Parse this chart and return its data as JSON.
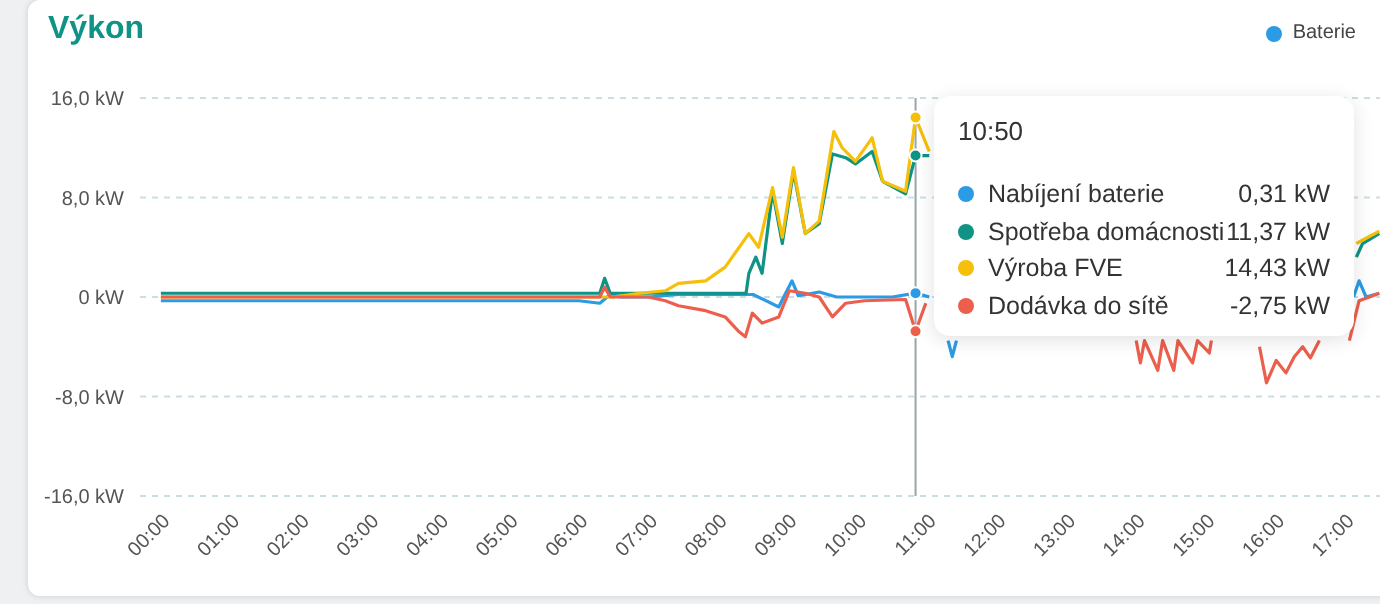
{
  "chart_data": {
    "type": "line",
    "title": "Výkon",
    "xlim": [
      -0.3,
      17.5
    ],
    "xticks": [
      {
        "value": 0,
        "label": "00:00"
      },
      {
        "value": 1,
        "label": "01:00"
      },
      {
        "value": 2,
        "label": "02:00"
      },
      {
        "value": 3,
        "label": "03:00"
      },
      {
        "value": 4,
        "label": "04:00"
      },
      {
        "value": 5,
        "label": "05:00"
      },
      {
        "value": 6,
        "label": "06:00"
      },
      {
        "value": 7,
        "label": "07:00"
      },
      {
        "value": 8,
        "label": "08:00"
      },
      {
        "value": 9,
        "label": "09:00"
      },
      {
        "value": 10,
        "label": "10:00"
      },
      {
        "value": 11,
        "label": "11:00"
      },
      {
        "value": 12,
        "label": "12:00"
      },
      {
        "value": 13,
        "label": "13:00"
      },
      {
        "value": 14,
        "label": "14:00"
      },
      {
        "value": 15,
        "label": "15:00"
      },
      {
        "value": 16,
        "label": "16:00"
      },
      {
        "value": 17,
        "label": "17:00"
      }
    ],
    "ylim": [
      -16,
      16
    ],
    "yticks": [
      {
        "value": -16,
        "label": "-16,0 kW"
      },
      {
        "value": -8,
        "label": "-8,0 kW"
      },
      {
        "value": 0,
        "label": "0 kW"
      },
      {
        "value": 8,
        "label": "8,0 kW"
      },
      {
        "value": 16,
        "label": "16,0 kW"
      }
    ],
    "grid": "y",
    "legend": "top right",
    "marker": "none",
    "line_style": "solid",
    "series": [
      {
        "name": "Nabíjení baterie",
        "color": "#2b9be6",
        "x": [
          0,
          3,
          6,
          6.3,
          6.45,
          6.6,
          7,
          7.43,
          8.0,
          8.5,
          8.87,
          8.95,
          9.06,
          9.15,
          9.45,
          9.7,
          10,
          10.5,
          10.833,
          11.03,
          11.15,
          11.3,
          11.36,
          11.42,
          12,
          17.12,
          17.2,
          17.3,
          17.49
        ],
        "values": [
          -0.3,
          -0.3,
          -0.3,
          -0.5,
          0.2,
          0,
          0,
          0.2,
          0.2,
          0.2,
          -0.8,
          0.1,
          1.3,
          0.1,
          0.4,
          0,
          0,
          0,
          0.31,
          0,
          null,
          -3.5,
          -4.8,
          -3.5,
          null,
          0,
          1.3,
          0,
          0.3
        ]
      },
      {
        "name": "Spotřeba domácnosti",
        "color": "#0e9384",
        "x": [
          0,
          3,
          6,
          6.3,
          6.37,
          6.45,
          7,
          7.5,
          8.0,
          8.4,
          8.44,
          8.54,
          8.63,
          8.78,
          8.92,
          9.08,
          9.25,
          9.45,
          9.64,
          9.83,
          9.97,
          10.21,
          10.36,
          10.69,
          10.833,
          11.03,
          11.2,
          17.16,
          17.25,
          17.49
        ],
        "values": [
          0.3,
          0.3,
          0.3,
          0.3,
          1.5,
          0.3,
          0.3,
          0.3,
          0.3,
          0.3,
          1.9,
          3.2,
          1.9,
          8.5,
          4.3,
          10.1,
          5.1,
          5.9,
          11.5,
          11.2,
          10.7,
          11.7,
          9.3,
          8.3,
          11.37,
          11.37,
          null,
          3.2,
          4.3,
          5.1
        ]
      },
      {
        "name": "Výroba FVE",
        "color": "#f5bf0a",
        "x": [
          0,
          6.5,
          6.87,
          7.24,
          7.43,
          7.82,
          8.1,
          8.44,
          8.58,
          8.78,
          8.92,
          9.08,
          9.25,
          9.45,
          9.66,
          9.78,
          9.97,
          10.21,
          10.36,
          10.69,
          10.833,
          11.03,
          11.2,
          17.16,
          17.49
        ],
        "values": [
          0,
          0,
          0.3,
          0.5,
          1.1,
          1.3,
          2.4,
          5.1,
          4.0,
          8.8,
          4.8,
          10.4,
          5.1,
          6.1,
          13.3,
          12.0,
          10.9,
          12.8,
          9.3,
          8.5,
          14.43,
          11.7,
          null,
          4.3,
          5.3
        ]
      },
      {
        "name": "Dodávka do sítě",
        "color": "#ec5f4c",
        "x": [
          0,
          3,
          6,
          6.3,
          6.37,
          6.45,
          7,
          7.24,
          7.43,
          7.82,
          8.1,
          8.3,
          8.39,
          8.49,
          8.63,
          8.87,
          9.02,
          9.25,
          9.45,
          9.64,
          9.83,
          10.1,
          10.69,
          10.833,
          10.98,
          11.1,
          14.0,
          14.06,
          14.12,
          14.31,
          14.38,
          14.54,
          14.6,
          14.81,
          14.88,
          15.05,
          15.08,
          15.2,
          15.77,
          15.87,
          16.01,
          16.15,
          16.27,
          16.39,
          16.5,
          16.63,
          17.0,
          17.06,
          17.2,
          17.35,
          17.49
        ],
        "values": [
          0,
          0,
          0,
          0,
          0.8,
          0,
          0,
          -0.3,
          -0.7,
          -1.1,
          -1.6,
          -2.8,
          -3.2,
          -1.3,
          -2.1,
          -1.6,
          0.5,
          0.3,
          0,
          -1.6,
          -0.5,
          -0.3,
          -0.2,
          -2.75,
          -0.5,
          null,
          -3.5,
          -5.3,
          -3.5,
          -5.9,
          -3.5,
          -5.9,
          -3.5,
          -5.3,
          -3.5,
          -4.5,
          -3.5,
          null,
          -4,
          -6.9,
          -5.1,
          -6.1,
          -4.8,
          -4,
          -4.9,
          -3.5,
          null,
          -3.5,
          -0.3,
          0,
          0.3
        ]
      }
    ],
    "ref_lines": [
      {
        "axis": "x",
        "value": 10.833,
        "color": "#9aa5a8",
        "line_style": "solid"
      }
    ],
    "annotations": [
      "Baterie",
      "10:50",
      "0,31 kW",
      "11,37 kW",
      "14,43 kW",
      "-2,75 kW"
    ]
  }
}
